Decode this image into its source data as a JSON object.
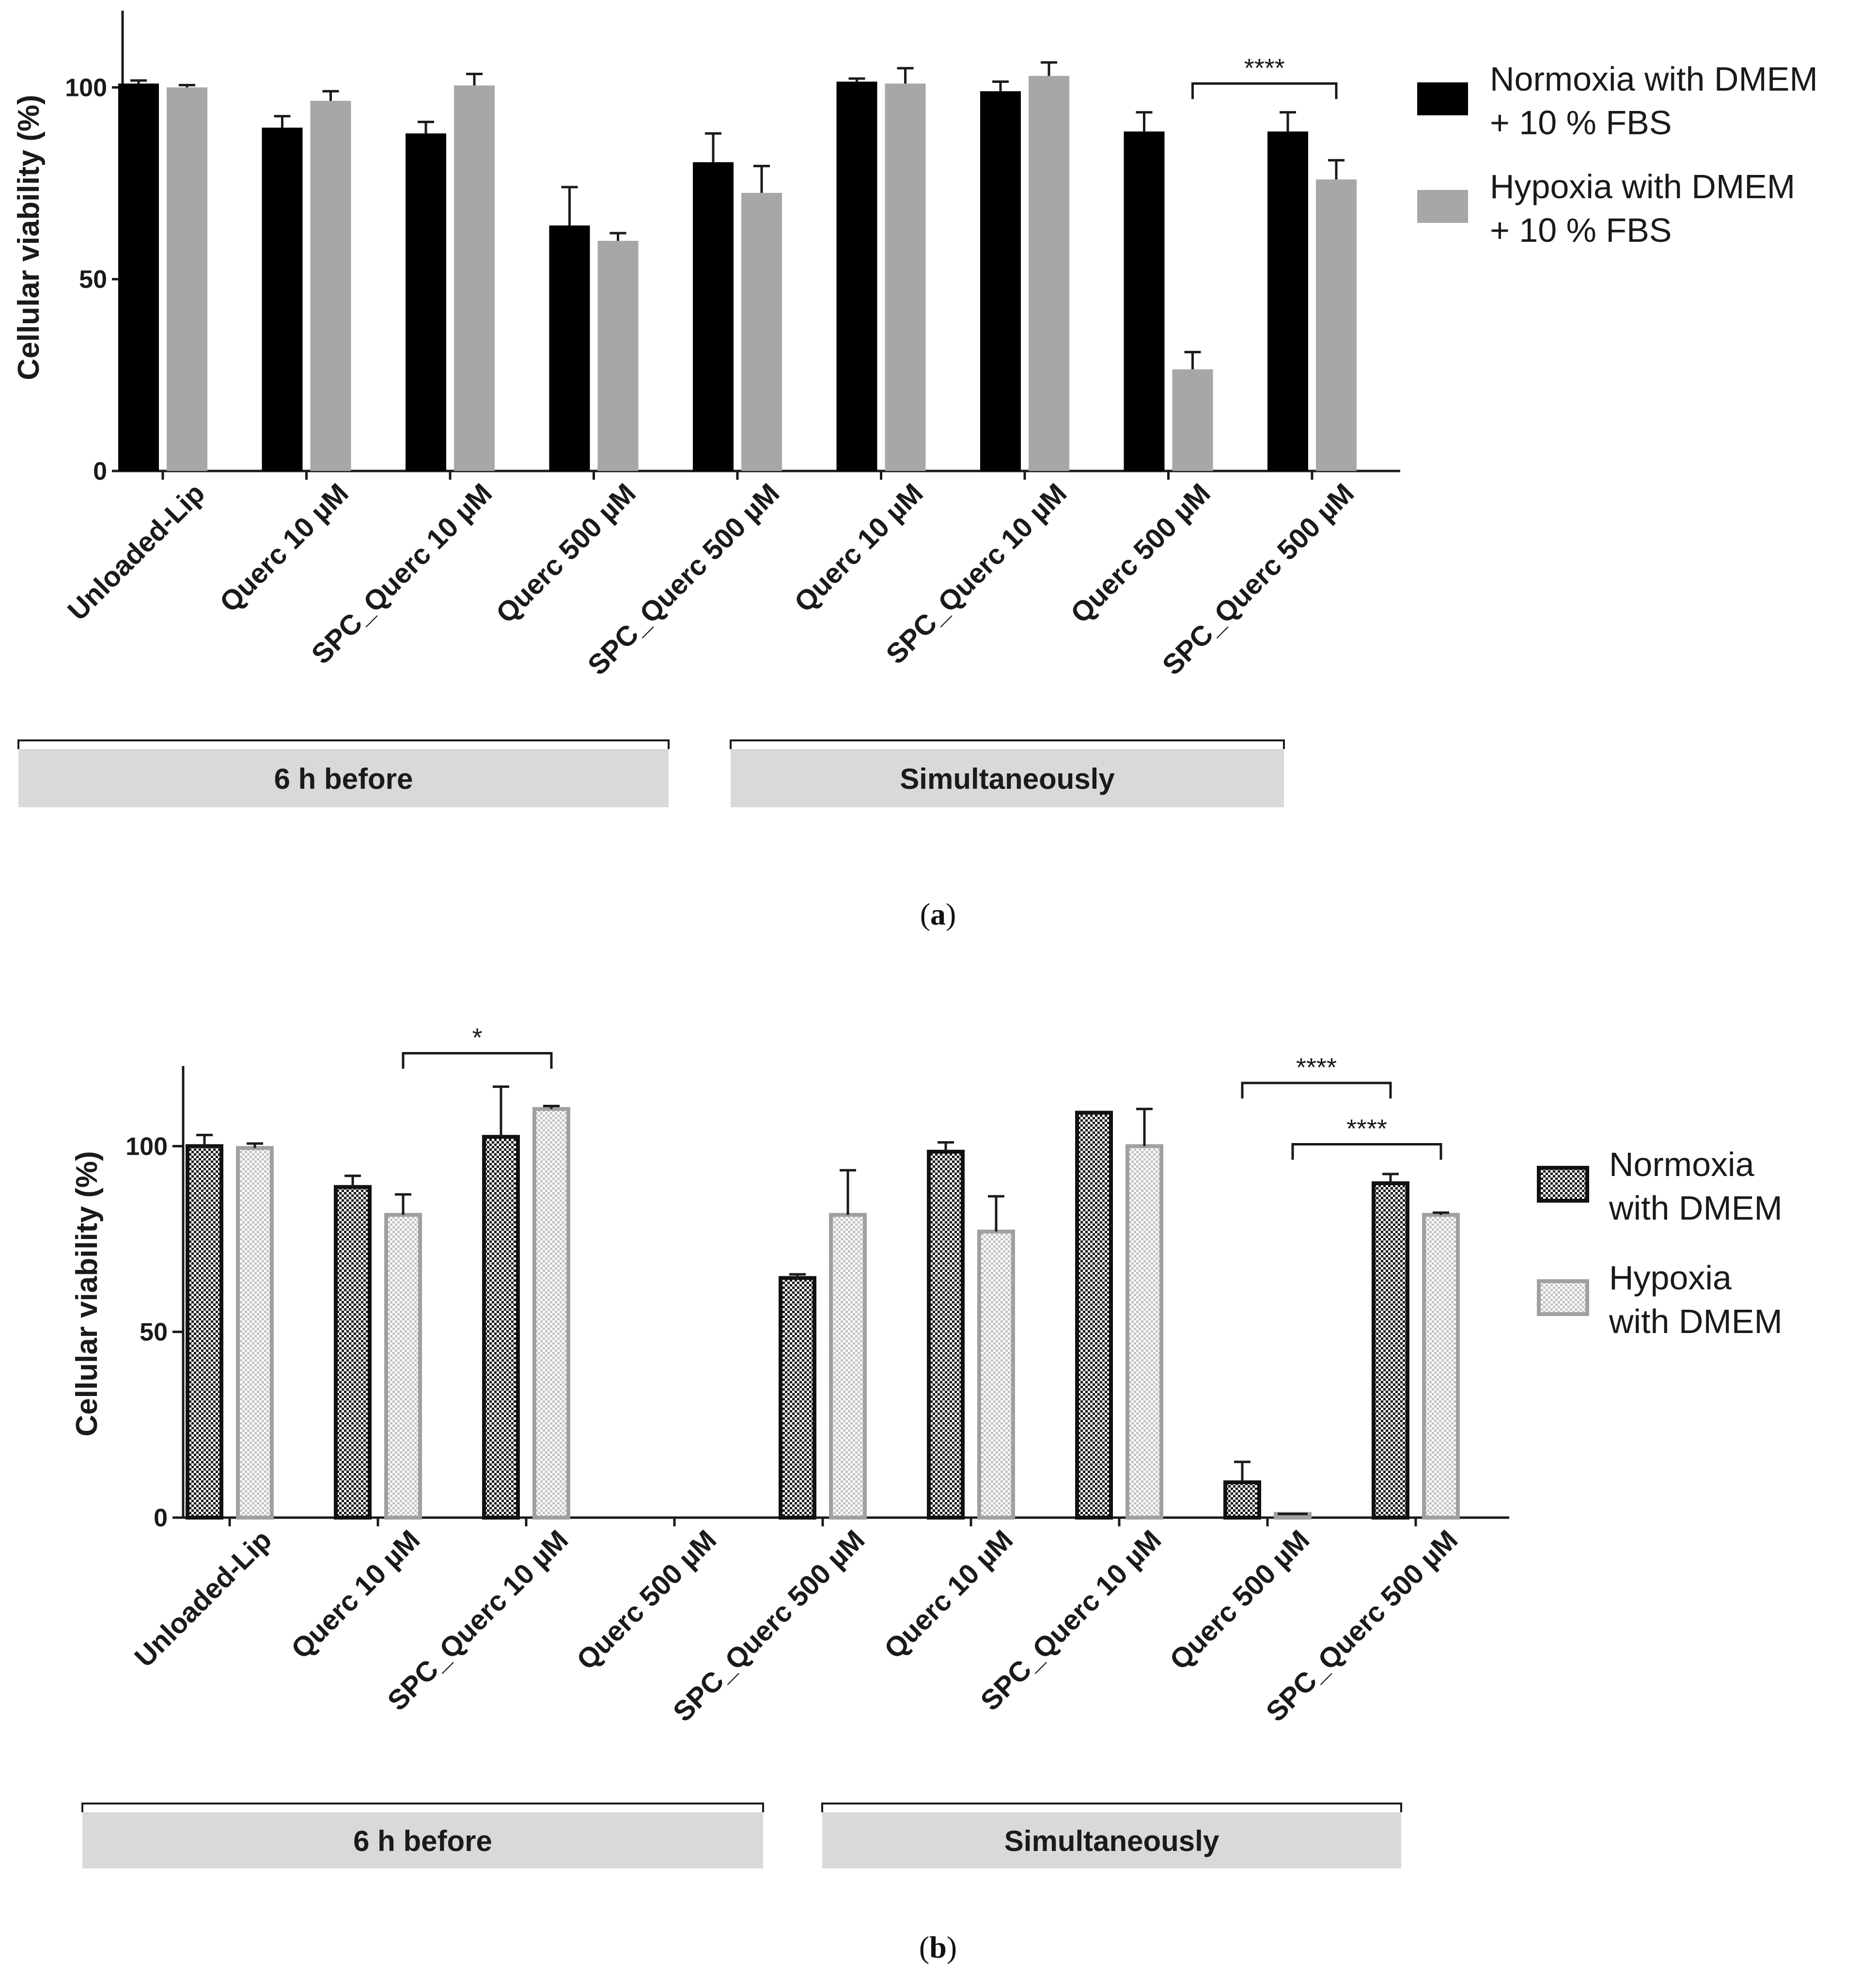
{
  "colors": {
    "normoxia": "#000000",
    "hypoxia": "#a7a6a8",
    "group_band": "#d9d9d9",
    "axis": "#1a1a1a"
  },
  "chart_data": [
    {
      "type": "bar",
      "panel": "a",
      "caption_letter": "a",
      "ylabel": "Cellular viability (%)",
      "ylim": [
        0,
        120
      ],
      "yticks": [
        0,
        50,
        100
      ],
      "categories": [
        "Unloaded-Lip",
        "Querc 10 µM",
        "SPC_Querc 10 µM",
        "Querc 500 µM",
        "SPC_Querc 500 µM",
        "Querc 10 µM",
        "SPC_Querc 10 µM",
        "Querc 500 µM",
        "SPC_Querc 500 µM"
      ],
      "series": [
        {
          "name": "Normoxia with DMEM + 10 % FBS",
          "legend_lines": [
            "Normoxia with DMEM",
            "+ 10 % FBS"
          ],
          "values": [
            101,
            89.5,
            88,
            64,
            80.5,
            101.5,
            99,
            88.5,
            88.5
          ],
          "errors": [
            0.8,
            3,
            3,
            10,
            7.5,
            0.8,
            2.5,
            5,
            5
          ]
        },
        {
          "name": "Hypoxia with DMEM + 10 % FBS",
          "legend_lines": [
            "Hypoxia with DMEM",
            "+ 10 % FBS"
          ],
          "values": [
            100,
            96.5,
            100.5,
            60,
            72.5,
            101,
            103,
            26.5,
            76
          ],
          "errors": [
            0.6,
            2.5,
            3,
            2,
            7,
            4,
            3.5,
            4.5,
            5
          ]
        }
      ],
      "groups": [
        {
          "label": "6 h before",
          "from": 0,
          "to": 4
        },
        {
          "label": "Simultaneously",
          "from": 5,
          "to": 8
        }
      ],
      "significance": [
        {
          "label": "****",
          "from": [
            7,
            1
          ],
          "to": [
            8,
            1
          ],
          "y": 101
        }
      ]
    },
    {
      "type": "bar",
      "panel": "b",
      "caption_letter": "b",
      "ylabel": "Cellular viability (%)",
      "ylim": [
        0,
        120
      ],
      "yticks": [
        0,
        50,
        100
      ],
      "categories": [
        "Unloaded-Lip",
        "Querc 10 µM",
        "SPC_Querc 10 µM",
        "Querc 500 µM",
        "SPC_Querc 500 µM",
        "Querc 10 µM",
        "SPC_Querc 10 µM",
        "Querc 500 µM",
        "SPC_Querc 500 µM"
      ],
      "series": [
        {
          "name": "Normoxia with DMEM",
          "legend_lines": [
            "Normoxia",
            "with DMEM"
          ],
          "values": [
            100,
            89,
            102.5,
            0,
            64.5,
            98.5,
            109,
            9.5,
            90
          ],
          "errors": [
            3,
            3,
            13.5,
            0,
            1,
            2.5,
            0,
            5.5,
            2.5
          ]
        },
        {
          "name": "Hypoxia with DMEM",
          "legend_lines": [
            "Hypoxia",
            "with DMEM"
          ],
          "values": [
            99.5,
            81.5,
            110,
            0,
            81.5,
            77,
            100,
            1,
            81.5
          ],
          "errors": [
            1.2,
            5.5,
            0.8,
            0,
            12,
            9.5,
            10,
            0,
            0.6
          ]
        }
      ],
      "groups": [
        {
          "label": "6 h before",
          "from": 0,
          "to": 4
        },
        {
          "label": "Simultaneously",
          "from": 5,
          "to": 8
        }
      ],
      "significance": [
        {
          "label": "*",
          "from": [
            1,
            1
          ],
          "to": [
            2,
            1
          ],
          "y": 125
        },
        {
          "label": "****",
          "from": [
            7,
            0
          ],
          "to": [
            8,
            0
          ],
          "y": 117
        },
        {
          "label": "****",
          "from": [
            7,
            1
          ],
          "to": [
            8,
            1
          ],
          "y": 100.5
        }
      ]
    }
  ]
}
